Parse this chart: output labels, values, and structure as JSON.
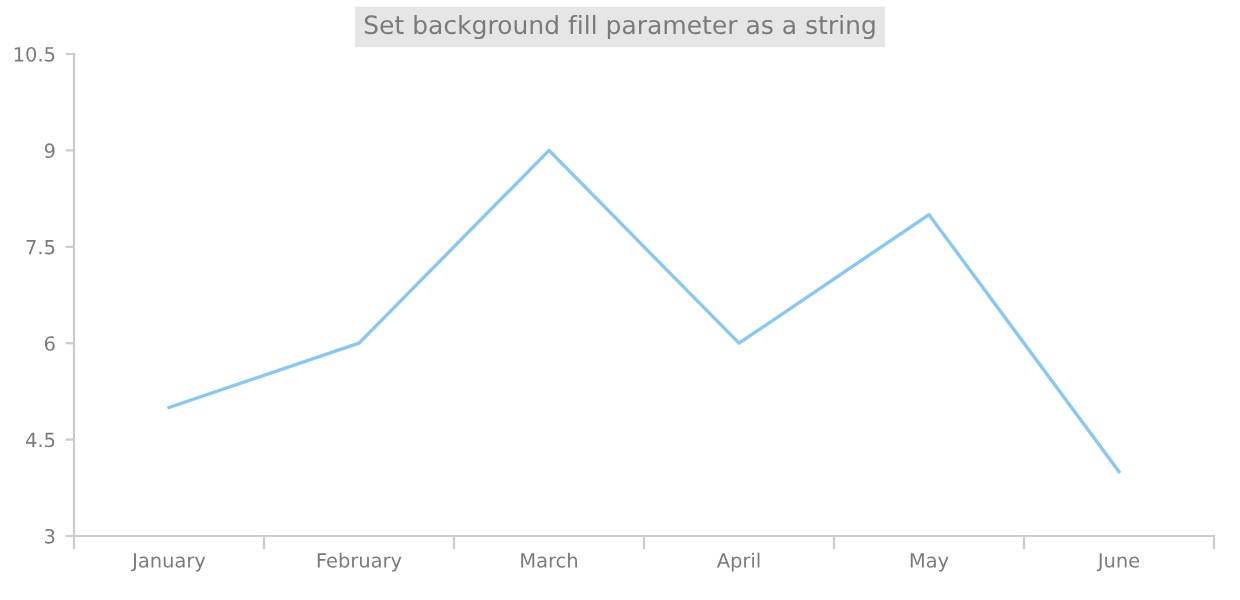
{
  "chart_data": {
    "type": "line",
    "title": "Set background fill parameter as a string",
    "categories": [
      "January",
      "February",
      "March",
      "April",
      "May",
      "June"
    ],
    "series": [
      {
        "color": "#86c8f5",
        "values": [
          5,
          6,
          9,
          6,
          8,
          4
        ]
      }
    ],
    "ylim": [
      3,
      10.5
    ],
    "yticks": [
      3,
      4.5,
      6,
      7.5,
      9,
      10.5
    ],
    "grid": false,
    "legend": false,
    "marker": "none"
  }
}
